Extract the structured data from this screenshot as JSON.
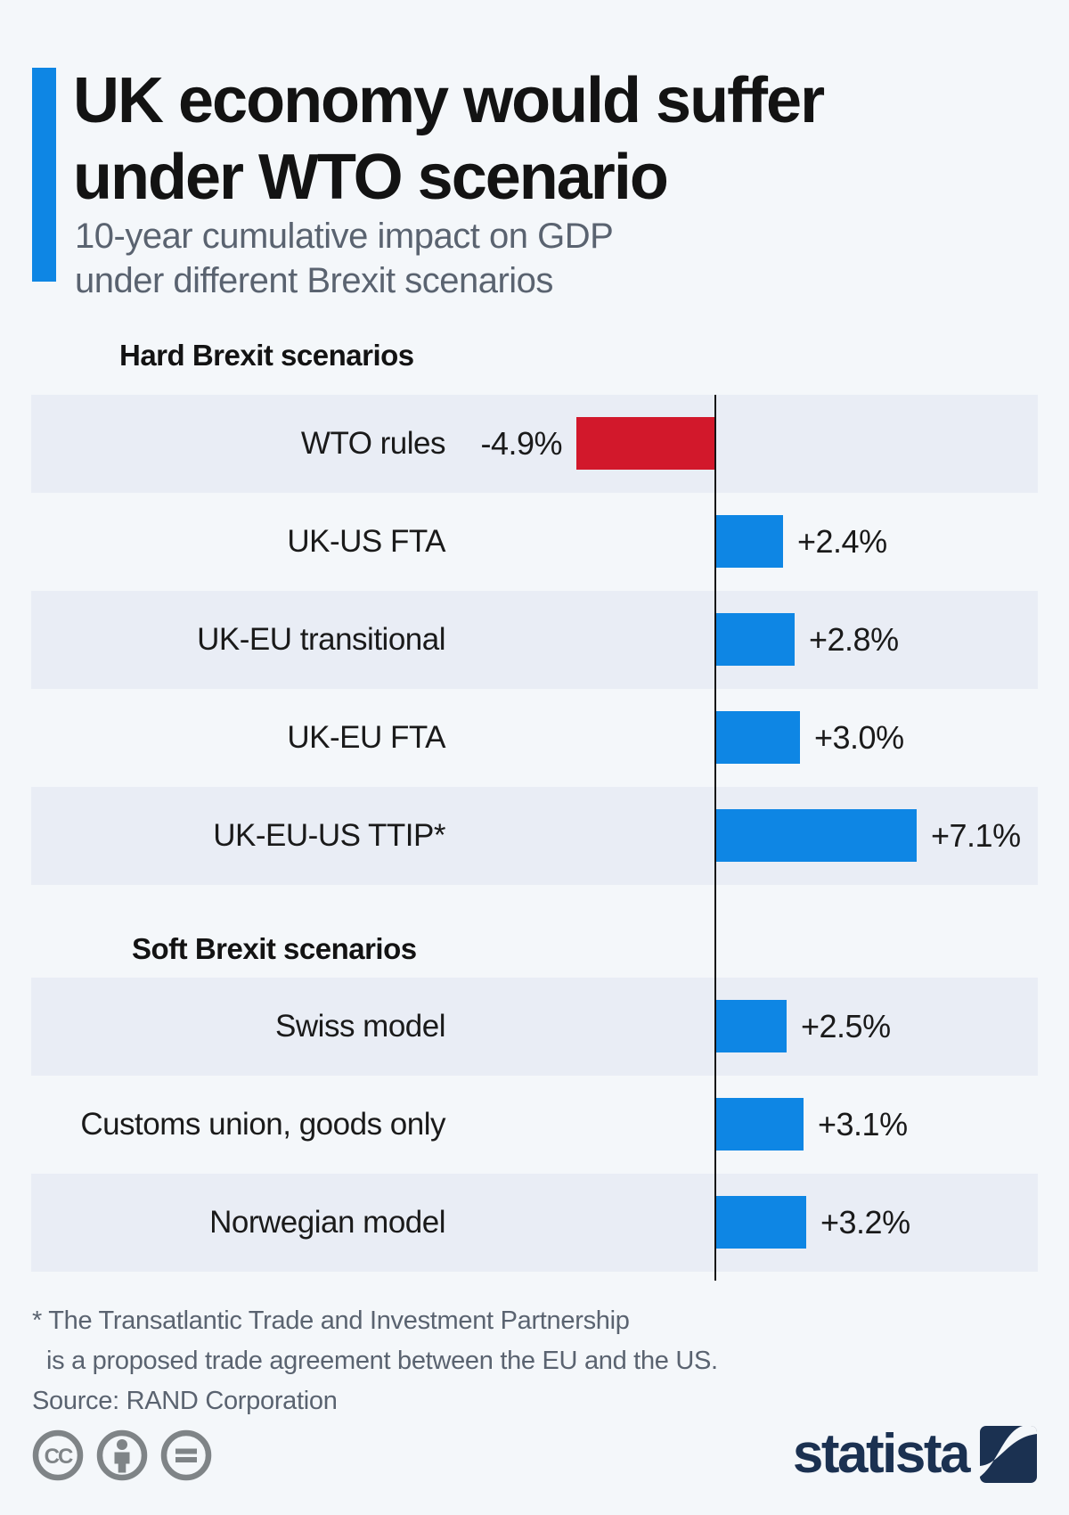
{
  "header": {
    "title_line1": "UK economy would suffer",
    "title_line2": "under WTO scenario",
    "subtitle_line1": "10-year cumulative impact on GDP",
    "subtitle_line2": "under different Brexit scenarios"
  },
  "chart_data": {
    "type": "bar",
    "orientation": "horizontal",
    "value_unit": "percent GDP impact",
    "baseline": 0,
    "sections": [
      {
        "heading": "Hard Brexit scenarios",
        "rows": [
          {
            "label": "WTO rules",
            "value": -4.9,
            "value_label": "-4.9%",
            "color": "#d2182b"
          },
          {
            "label": "UK-US FTA",
            "value": 2.4,
            "value_label": "+2.4%",
            "color": "#0e86e4"
          },
          {
            "label": "UK-EU transitional",
            "value": 2.8,
            "value_label": "+2.8%",
            "color": "#0e86e4"
          },
          {
            "label": "UK-EU FTA",
            "value": 3.0,
            "value_label": "+3.0%",
            "color": "#0e86e4"
          },
          {
            "label": "UK-EU-US TTIP*",
            "value": 7.1,
            "value_label": "+7.1%",
            "color": "#0e86e4"
          }
        ]
      },
      {
        "heading": "Soft Brexit scenarios",
        "rows": [
          {
            "label": "Swiss model",
            "value": 2.5,
            "value_label": "+2.5%",
            "color": "#0e86e4"
          },
          {
            "label": "Customs union, goods only",
            "value": 3.1,
            "value_label": "+3.1%",
            "color": "#0e86e4"
          },
          {
            "label": "Norwegian model",
            "value": 3.2,
            "value_label": "+3.2%",
            "color": "#0e86e4"
          }
        ]
      }
    ]
  },
  "footer": {
    "footnote_line1": "* The Transatlantic Trade and Investment Partnership",
    "footnote_line2": "is a proposed trade agreement between the EU and the US.",
    "source": "Source: RAND Corporation",
    "license_icons": [
      "cc-icon",
      "attribution-icon",
      "no-derivatives-icon"
    ],
    "brand": "statista"
  },
  "colors": {
    "background": "#f4f7fa",
    "row_band": "#e9edf5",
    "positive_blue": "#0e86e4",
    "negative_red": "#d2182b",
    "accent_blue": "#0e86e4",
    "brand_navy": "#1b3151",
    "text_dark": "#131313",
    "text_gray": "#5a6370",
    "icon_gray": "#7f8487"
  }
}
